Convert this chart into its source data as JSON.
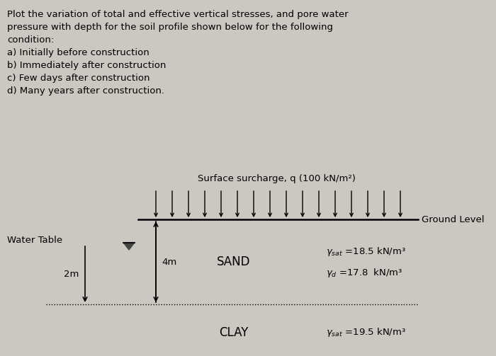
{
  "bg_color": "#cbc8c2",
  "text_block": [
    "Plot the variation of total and effective vertical stresses, and pore water",
    "pressure with depth for the soil profile shown below for the following",
    "condition:",
    "a) Initially before construction",
    "b) Immediately after construction",
    "c) Few days after construction",
    "d) Many years after construction."
  ],
  "surcharge_label": "Surface surcharge, q (100 kN/m²)",
  "ground_level_label": "Ground Level",
  "water_table_label": "Water Table",
  "sand_label": "SAND",
  "clay_label": "CLAY",
  "depth_sand_label": "4m",
  "depth_wt_label": "2m",
  "gamma_sat_sand_text": "= 18.5 kN/m³",
  "gamma_d_sand_text": "= 17.8  kN/m³",
  "gamma_sat_clay_text": "= 19.5 kN/m³"
}
